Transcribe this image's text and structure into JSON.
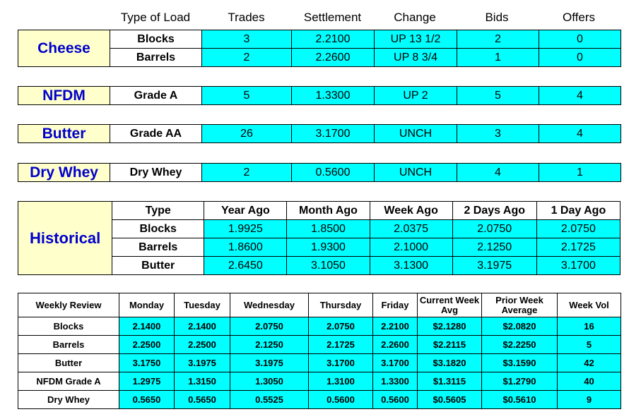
{
  "headers": {
    "type_of_load": "Type of Load",
    "trades": "Trades",
    "settlement": "Settlement",
    "change": "Change",
    "bids": "Bids",
    "offers": "Offers"
  },
  "cheese": {
    "label": "Cheese",
    "rows": [
      {
        "type": "Blocks",
        "trades": "3",
        "settlement": "2.2100",
        "change": "UP 13 1/2",
        "bids": "2",
        "offers": "0"
      },
      {
        "type": "Barrels",
        "trades": "2",
        "settlement": "2.2600",
        "change": "UP 8 3/4",
        "bids": "1",
        "offers": "0"
      }
    ]
  },
  "nfdm": {
    "label": "NFDM",
    "row": {
      "type": "Grade A",
      "trades": "5",
      "settlement": "1.3300",
      "change": "UP 2",
      "bids": "5",
      "offers": "4"
    }
  },
  "butter": {
    "label": "Butter",
    "row": {
      "type": "Grade AA",
      "trades": "26",
      "settlement": "3.1700",
      "change": "UNCH",
      "bids": "3",
      "offers": "4"
    }
  },
  "dry_whey": {
    "label": "Dry Whey",
    "row": {
      "type": "Dry Whey",
      "trades": "2",
      "settlement": "0.5600",
      "change": "UNCH",
      "bids": "4",
      "offers": "1"
    }
  },
  "historical": {
    "label": "Historical",
    "headers": [
      "Type",
      "Year Ago",
      "Month Ago",
      "Week Ago",
      "2 Days Ago",
      "1 Day Ago"
    ],
    "rows": [
      [
        "Blocks",
        "1.9925",
        "1.8500",
        "2.0375",
        "2.0750",
        "2.0750"
      ],
      [
        "Barrels",
        "1.8600",
        "1.9300",
        "2.1000",
        "2.1250",
        "2.1725"
      ],
      [
        "Butter",
        "2.6450",
        "3.1050",
        "3.1300",
        "3.1975",
        "3.1700"
      ]
    ]
  },
  "weekly": {
    "headers": [
      "Weekly Review",
      "Monday",
      "Tuesday",
      "Wednesday",
      "Thursday",
      "Friday",
      "Current Week Avg",
      "Prior Week Average",
      "Week Vol"
    ],
    "rows": [
      [
        "Blocks",
        "2.1400",
        "2.1400",
        "2.0750",
        "2.0750",
        "2.2100",
        "$2.1280",
        "$2.0820",
        "16"
      ],
      [
        "Barrels",
        "2.2500",
        "2.2500",
        "2.1250",
        "2.1725",
        "2.2600",
        "$2.2115",
        "$2.2250",
        "5"
      ],
      [
        "Butter",
        "3.1750",
        "3.1975",
        "3.1975",
        "3.1700",
        "3.1700",
        "$3.1820",
        "$3.1590",
        "42"
      ],
      [
        "NFDM Grade A",
        "1.2975",
        "1.3150",
        "1.3050",
        "1.3100",
        "1.3300",
        "$1.3115",
        "$1.2790",
        "40"
      ],
      [
        "Dry Whey",
        "0.5650",
        "0.5650",
        "0.5525",
        "0.5600",
        "0.5600",
        "$0.5605",
        "$0.5610",
        "9"
      ]
    ]
  }
}
